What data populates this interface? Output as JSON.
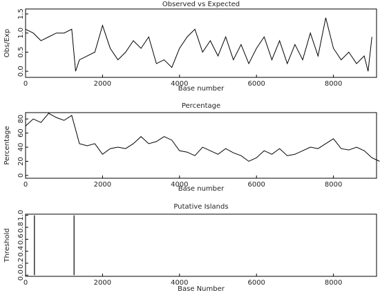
{
  "chart_data": [
    {
      "type": "line",
      "title": "Observed vs Expected",
      "xlabel": "Base number",
      "ylabel": "Obs/Exp",
      "color": "#000000",
      "x": [
        0,
        200,
        400,
        600,
        800,
        1000,
        1200,
        1300,
        1400,
        1600,
        1800,
        2000,
        2200,
        2400,
        2600,
        2800,
        3000,
        3200,
        3400,
        3600,
        3800,
        4000,
        4200,
        4400,
        4600,
        4800,
        5000,
        5200,
        5400,
        5600,
        5800,
        6000,
        6200,
        6400,
        6600,
        6800,
        7000,
        7200,
        7400,
        7600,
        7800,
        8000,
        8200,
        8400,
        8600,
        8800,
        8900,
        9000
      ],
      "values": [
        1.1,
        1.0,
        0.8,
        0.9,
        1.0,
        1.0,
        1.1,
        0,
        0.3,
        0.4,
        0.5,
        1.2,
        0.6,
        0.3,
        0.5,
        0.8,
        0.6,
        0.9,
        0.2,
        0.3,
        0.1,
        0.6,
        0.9,
        1.1,
        0.5,
        0.8,
        0.4,
        0.9,
        0.3,
        0.7,
        0.2,
        0.6,
        0.9,
        0.3,
        0.8,
        0.2,
        0.7,
        0.3,
        1.0,
        0.4,
        1.4,
        0.6,
        0.3,
        0.5,
        0.2,
        0.4,
        0,
        0.9
      ],
      "xlim": [
        0,
        9120
      ],
      "ylim": [
        -0.16,
        1.63
      ],
      "xticks": [
        0,
        2000,
        4000,
        6000,
        8000
      ],
      "yticks": [
        {
          "value": 0,
          "label": "0.0"
        },
        0.5,
        {
          "value": 1,
          "label": "1.0"
        },
        1.5
      ]
    },
    {
      "type": "line",
      "title": "Percentage",
      "xlabel": "Base number",
      "ylabel": "Percentage",
      "color": "#000000",
      "x": [
        0,
        200,
        400,
        600,
        800,
        1000,
        1200,
        1400,
        1600,
        1800,
        2000,
        2200,
        2400,
        2600,
        2800,
        3000,
        3200,
        3400,
        3600,
        3800,
        4000,
        4200,
        4400,
        4600,
        4800,
        5000,
        5200,
        5400,
        5600,
        5800,
        6000,
        6200,
        6400,
        6600,
        6800,
        7000,
        7200,
        7400,
        7600,
        7800,
        8000,
        8200,
        8400,
        8600,
        8800,
        9000,
        9200
      ],
      "values": [
        70,
        80,
        75,
        88,
        82,
        78,
        85,
        45,
        42,
        45,
        30,
        38,
        40,
        38,
        45,
        55,
        45,
        48,
        55,
        50,
        35,
        33,
        28,
        40,
        35,
        30,
        38,
        32,
        28,
        20,
        25,
        35,
        30,
        38,
        28,
        30,
        35,
        40,
        38,
        45,
        52,
        38,
        36,
        40,
        35,
        25,
        20
      ],
      "xlim": [
        0,
        9120
      ],
      "ylim": [
        -4,
        89
      ],
      "xticks": [
        0,
        2000,
        4000,
        6000,
        8000
      ],
      "yticks": [
        0,
        20,
        40,
        60,
        80
      ]
    },
    {
      "type": "stem",
      "title": "Putative Islands",
      "xlabel": "Base Number",
      "ylabel": "Threshold",
      "color": "#000000",
      "x": [
        230,
        1260
      ],
      "values": [
        1,
        1
      ],
      "xlim": [
        0,
        9120
      ],
      "ylim": [
        -0.02,
        1.02
      ],
      "xticks": [
        0,
        2000,
        4000,
        6000,
        8000
      ],
      "yticks": [
        {
          "value": 0,
          "label": "0.0"
        },
        0.2,
        0.4,
        0.6,
        0.8,
        {
          "value": 1,
          "label": "1.0"
        }
      ]
    }
  ]
}
